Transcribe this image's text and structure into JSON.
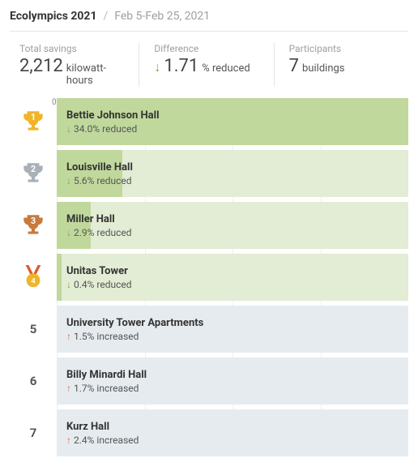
{
  "header": {
    "title": "Ecolympics 2021",
    "date_range": "Feb 5-Feb 25, 2021"
  },
  "stats": {
    "total_savings": {
      "label": "Total savings",
      "value": "2,212",
      "unit": "kilowatt-hours"
    },
    "difference": {
      "label": "Difference",
      "arrow": "↓",
      "value": "1.71",
      "unit": "% reduced"
    },
    "participants": {
      "label": "Participants",
      "value": "7",
      "unit": "buildings"
    }
  },
  "axis": {
    "ticks": [
      "0%",
      "10%",
      "20%",
      "30%"
    ],
    "max_pct": 30
  },
  "colors": {
    "bg_reduced": "#e3ecd4",
    "fill_reduced": "#c0d89c",
    "bg_increased": "#e6ebef",
    "arrow_down": "#6fae4a",
    "arrow_up": "#e86a3f",
    "trophy_gold": "#f0b429",
    "trophy_silver": "#a9b0b7",
    "trophy_bronze": "#c77b3f",
    "medal_ribbon": "#e05a2b",
    "medal_disc": "#f0b429"
  },
  "rows": [
    {
      "rank": 1,
      "icon": "trophy-gold",
      "name": "Bettie Johnson Hall",
      "pct": 34.0,
      "direction": "reduced",
      "change_text": "34.0% reduced"
    },
    {
      "rank": 2,
      "icon": "trophy-silver",
      "name": "Louisville Hall",
      "pct": 5.6,
      "direction": "reduced",
      "change_text": "5.6% reduced"
    },
    {
      "rank": 3,
      "icon": "trophy-bronze",
      "name": "Miller Hall",
      "pct": 2.9,
      "direction": "reduced",
      "change_text": "2.9% reduced"
    },
    {
      "rank": 4,
      "icon": "medal",
      "name": "Unitas Tower",
      "pct": 0.4,
      "direction": "reduced",
      "change_text": "0.4% reduced"
    },
    {
      "rank": 5,
      "icon": "number",
      "name": "University Tower Apartments",
      "pct": 1.5,
      "direction": "increased",
      "change_text": "1.5% increased"
    },
    {
      "rank": 6,
      "icon": "number",
      "name": "Billy Minardi Hall",
      "pct": 1.7,
      "direction": "increased",
      "change_text": "1.7% increased"
    },
    {
      "rank": 7,
      "icon": "number",
      "name": "Kurz Hall",
      "pct": 2.4,
      "direction": "increased",
      "change_text": "2.4% increased"
    }
  ]
}
